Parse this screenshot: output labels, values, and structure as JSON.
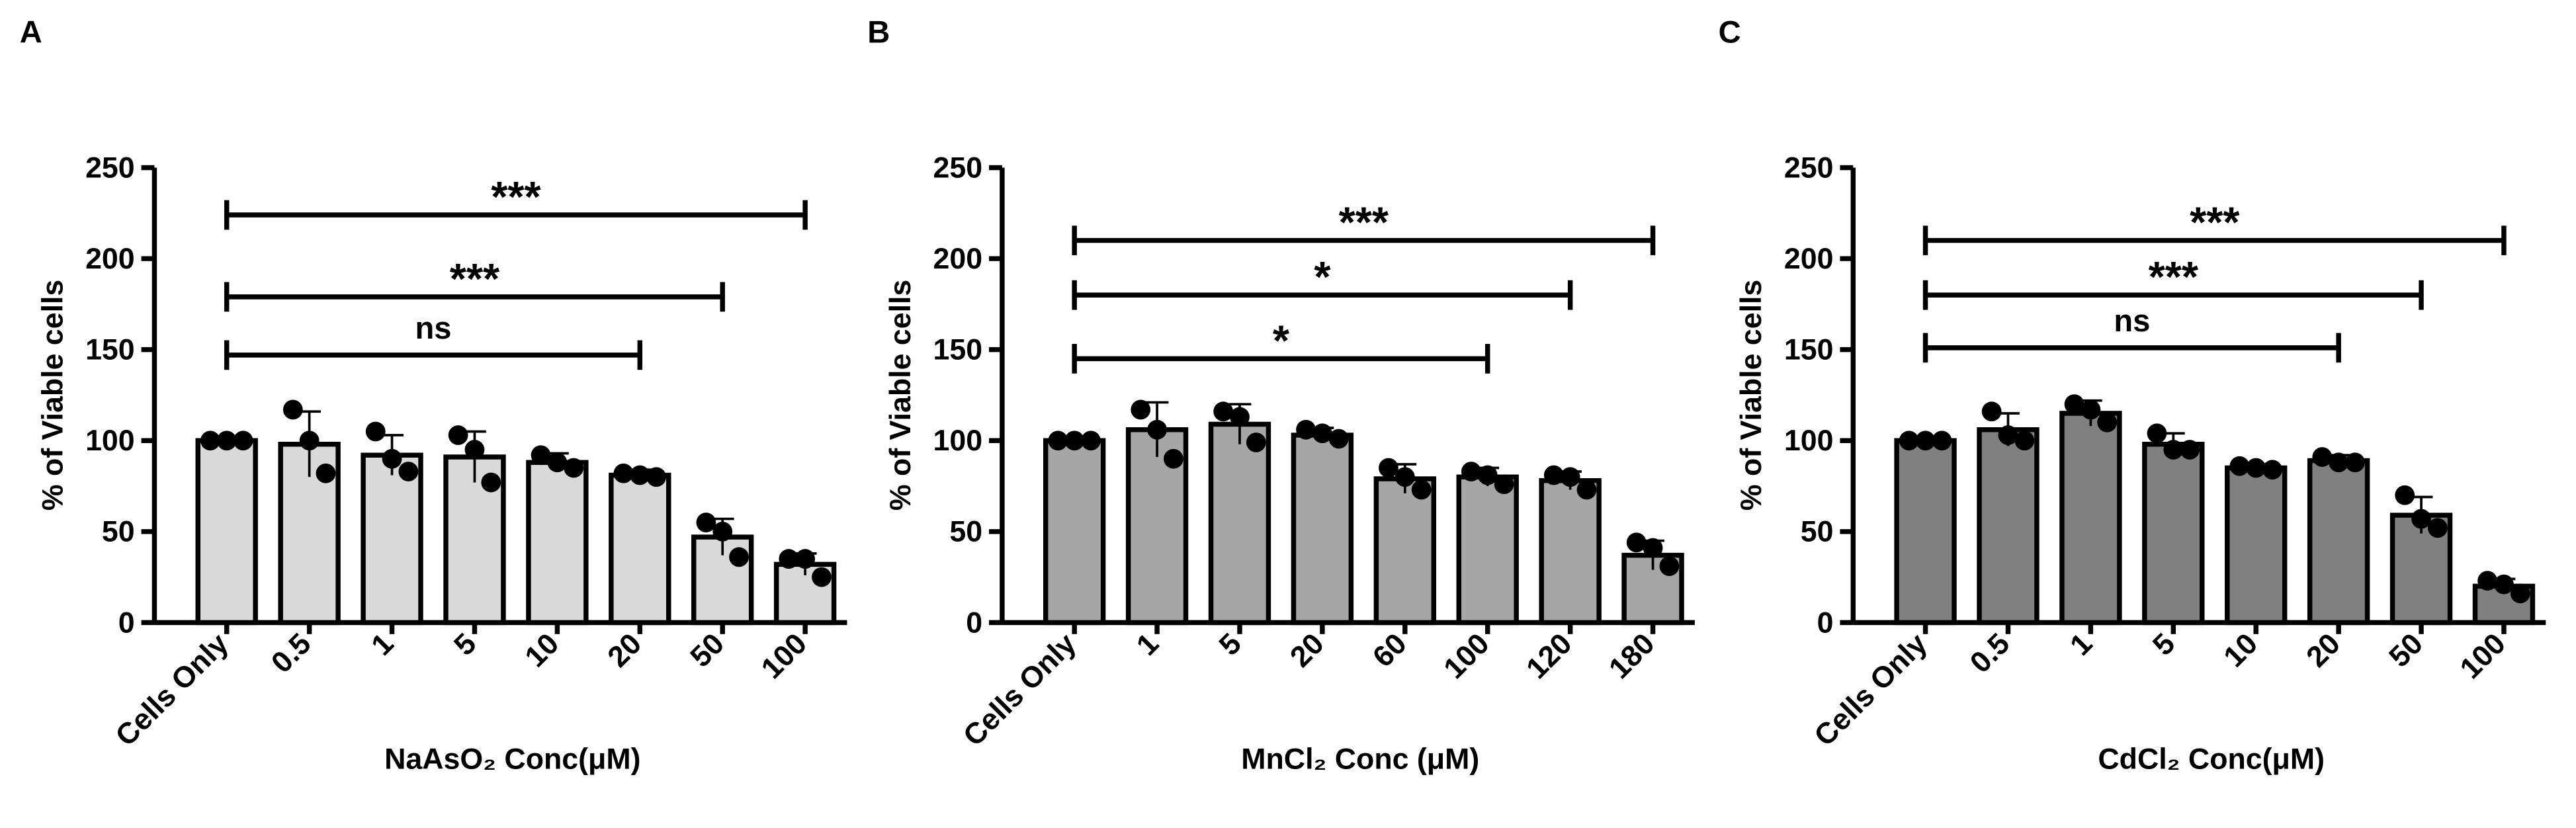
{
  "chart_data": [
    {
      "type": "bar",
      "panel": "A",
      "ylabel": "% of Viable cells",
      "xlabel": "NaAsO₂ Conc(μM)",
      "color": "#d9d9d9",
      "categories": [
        "Cells Only",
        "0.5",
        "1",
        "5",
        "10",
        "20",
        "50",
        "100"
      ],
      "values": [
        100,
        98,
        92,
        91,
        88,
        81,
        47,
        32
      ],
      "errors": [
        1,
        18,
        11,
        14,
        5,
        3,
        10,
        6
      ],
      "points": [
        [
          100,
          100,
          100
        ],
        [
          117,
          100,
          82
        ],
        [
          105,
          90,
          83
        ],
        [
          103,
          95,
          77
        ],
        [
          92,
          88,
          85
        ],
        [
          82,
          81,
          80
        ],
        [
          55,
          50,
          36
        ],
        [
          35,
          35,
          25
        ]
      ],
      "comparisons": [
        {
          "label": "ns",
          "from": "Cells Only",
          "to": "20",
          "y": 147
        },
        {
          "label": "***",
          "from": "Cells Only",
          "to": "50",
          "y": 179
        },
        {
          "label": "***",
          "from": "Cells Only",
          "to": "100",
          "y": 224
        }
      ],
      "ylim": [
        0,
        250
      ],
      "yticks": [
        0,
        50,
        100,
        150,
        200,
        250
      ]
    },
    {
      "type": "bar",
      "panel": "B",
      "ylabel": "% of Viable cells",
      "xlabel": "MnCl₂ Conc (μM)",
      "color": "#a6a6a6",
      "categories": [
        "Cells Only",
        "1",
        "5",
        "20",
        "60",
        "100",
        "120",
        "180"
      ],
      "values": [
        100,
        106,
        109,
        103,
        79,
        80,
        78,
        37
      ],
      "errors": [
        1,
        15,
        11,
        4,
        8,
        5,
        5,
        8
      ],
      "points": [
        [
          100,
          100,
          100
        ],
        [
          117,
          106,
          90
        ],
        [
          116,
          113,
          99
        ],
        [
          106,
          104,
          101
        ],
        [
          85,
          80,
          73
        ],
        [
          83,
          81,
          76
        ],
        [
          81,
          80,
          73
        ],
        [
          44,
          41,
          31
        ]
      ],
      "comparisons": [
        {
          "label": "*",
          "from": "Cells Only",
          "to": "100",
          "y": 145
        },
        {
          "label": "*",
          "from": "Cells Only",
          "to": "120",
          "y": 180
        },
        {
          "label": "***",
          "from": "Cells Only",
          "to": "180",
          "y": 210
        }
      ],
      "ylim": [
        0,
        250
      ],
      "yticks": [
        0,
        50,
        100,
        150,
        200,
        250
      ]
    },
    {
      "type": "bar",
      "panel": "C",
      "ylabel": "% of Viable cells",
      "xlabel": "CdCl₂ Conc(μM)",
      "color": "#808080",
      "categories": [
        "Cells Only",
        "0.5",
        "1",
        "5",
        "10",
        "20",
        "50",
        "100"
      ],
      "values": [
        100,
        106,
        115,
        98,
        85,
        89,
        59,
        20
      ],
      "errors": [
        1,
        9,
        7,
        6,
        2,
        3,
        10,
        4
      ],
      "points": [
        [
          100,
          100,
          100
        ],
        [
          116,
          103,
          100
        ],
        [
          120,
          117,
          110
        ],
        [
          104,
          95,
          95
        ],
        [
          86,
          85,
          84
        ],
        [
          91,
          88,
          88
        ],
        [
          70,
          57,
          52
        ],
        [
          23,
          21,
          16
        ]
      ],
      "comparisons": [
        {
          "label": "ns",
          "from": "Cells Only",
          "to": "20",
          "y": 151
        },
        {
          "label": "***",
          "from": "Cells Only",
          "to": "50",
          "y": 180
        },
        {
          "label": "***",
          "from": "Cells Only",
          "to": "100",
          "y": 210
        }
      ],
      "ylim": [
        0,
        250
      ],
      "yticks": [
        0,
        50,
        100,
        150,
        200,
        250
      ]
    }
  ]
}
